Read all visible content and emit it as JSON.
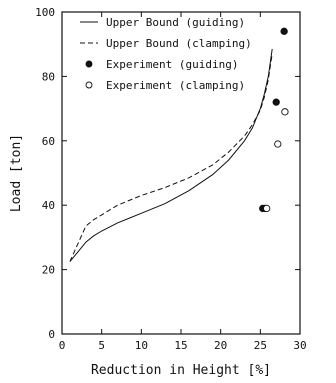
{
  "chart_data": {
    "type": "line",
    "xlabel": "Reduction in Height [%]",
    "ylabel": "Load [ton]",
    "xlim": [
      0,
      30
    ],
    "ylim": [
      0,
      100
    ],
    "xticks": [
      0,
      5,
      10,
      15,
      20,
      25,
      30
    ],
    "yticks": [
      0,
      20,
      40,
      60,
      80,
      100
    ],
    "grid": false,
    "legend_position": "top-left",
    "series": [
      {
        "name": "Upper Bound (guiding)",
        "style": "solid",
        "x": [
          1.0,
          2.0,
          3.0,
          4.0,
          5.0,
          7.0,
          10.0,
          13.0,
          16.0,
          19.0,
          21.0,
          23.0,
          24.0,
          25.0,
          25.5,
          26.0,
          26.5
        ],
        "y": [
          22.5,
          25.5,
          28.5,
          30.5,
          32.0,
          34.5,
          37.5,
          40.5,
          44.5,
          49.5,
          54.0,
          60.0,
          64.0,
          70.0,
          74.5,
          80.0,
          88.5
        ]
      },
      {
        "name": "Upper Bound (clamping)",
        "style": "dashed",
        "x": [
          1.0,
          2.0,
          3.0,
          4.0,
          5.0,
          7.0,
          10.0,
          13.0,
          16.0,
          19.0,
          21.0,
          23.0,
          24.0,
          25.0,
          25.5,
          26.0,
          26.5
        ],
        "y": [
          22.5,
          28.0,
          33.5,
          35.5,
          37.0,
          40.0,
          43.0,
          45.5,
          48.5,
          52.5,
          56.5,
          61.5,
          65.0,
          69.5,
          73.5,
          79.0,
          87.0
        ]
      },
      {
        "name": "Experiment (guiding)",
        "style": "filled-circle",
        "x": [
          25.3,
          25.6,
          27.0,
          28.0
        ],
        "y": [
          39.0,
          39.0,
          72.0,
          94.0
        ]
      },
      {
        "name": "Experiment (clamping)",
        "style": "open-circle",
        "x": [
          25.8,
          27.2,
          28.1
        ],
        "y": [
          39.0,
          59.0,
          69.0
        ]
      }
    ]
  }
}
